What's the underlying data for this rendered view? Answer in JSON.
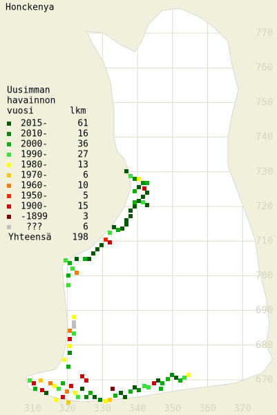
{
  "title": "Honckenya",
  "legend": {
    "header": [
      "Uusimman",
      "havainnon",
      "vuosi"
    ],
    "count_header": "lkm",
    "rows": [
      {
        "label": "2015-",
        "count": 61,
        "color": "#005a00"
      },
      {
        "label": "2010-",
        "count": 16,
        "color": "#008a00"
      },
      {
        "label": "2000-",
        "count": 36,
        "color": "#00b400"
      },
      {
        "label": "1990-",
        "count": 27,
        "color": "#33e633"
      },
      {
        "label": "1980-",
        "count": 13,
        "color": "#ffff00"
      },
      {
        "label": "1970-",
        "count": 6,
        "color": "#ffc800"
      },
      {
        "label": "1960-",
        "count": 10,
        "color": "#ff7800"
      },
      {
        "label": "1950-",
        "count": 5,
        "color": "#ff2800"
      },
      {
        "label": "1900-",
        "count": 15,
        "color": "#d20000"
      },
      {
        "label": "-1899",
        "count": 3,
        "color": "#820000"
      },
      {
        "label": "???",
        "count": 6,
        "color": "#c0c0c0"
      }
    ],
    "total_label": "Yhteensä",
    "total": 198
  },
  "axes": {
    "y_labels": [
      770,
      760,
      750,
      740,
      730,
      720,
      710,
      700,
      690,
      680,
      670
    ],
    "x_labels": [
      310,
      320,
      330,
      340,
      350,
      360,
      370
    ]
  }
}
